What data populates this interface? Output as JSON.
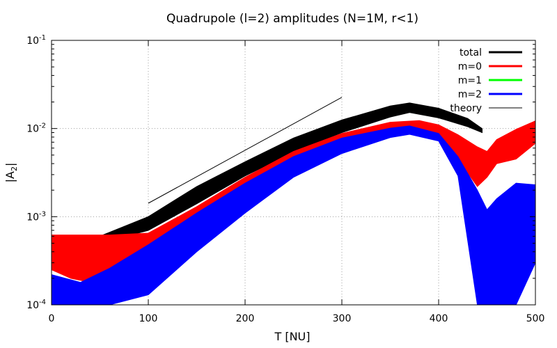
{
  "chart_data": {
    "type": "line",
    "title": "Quadrupole (l=2) amplitudes (N=1M, r<1)",
    "xlabel": "T [NU]",
    "ylabel_main": "|A",
    "ylabel_sub": "2",
    "ylabel_end": "|",
    "xlim": [
      0,
      500
    ],
    "ylim": [
      0.0001,
      0.1
    ],
    "yscale": "log",
    "grid": true,
    "legend_position": "top-right",
    "x_ticks": [
      {
        "value": 0,
        "label": "0"
      },
      {
        "value": 100,
        "label": "100"
      },
      {
        "value": 200,
        "label": "200"
      },
      {
        "value": 300,
        "label": "300"
      },
      {
        "value": 400,
        "label": "400"
      },
      {
        "value": 500,
        "label": "500"
      }
    ],
    "y_ticks": [
      {
        "value": 0.0001,
        "base": "10",
        "exp": "-4"
      },
      {
        "value": 0.001,
        "base": "10",
        "exp": "-3"
      },
      {
        "value": 0.01,
        "base": "10",
        "exp": "-2"
      },
      {
        "value": 0.1,
        "base": "10",
        "exp": "-1"
      }
    ],
    "series": [
      {
        "name": "total",
        "color": "#000000",
        "kind": "band",
        "upper": [
          [
            0,
            0.0006
          ],
          [
            50,
            0.0006
          ],
          [
            100,
            0.001
          ],
          [
            150,
            0.0022
          ],
          [
            200,
            0.0042
          ],
          [
            250,
            0.0078
          ],
          [
            300,
            0.0125
          ],
          [
            350,
            0.018
          ],
          [
            370,
            0.0195
          ],
          [
            400,
            0.017
          ],
          [
            430,
            0.013
          ],
          [
            445,
            0.01
          ]
        ],
        "lower": [
          [
            0,
            0.0006
          ],
          [
            50,
            0.0005
          ],
          [
            100,
            0.0007
          ],
          [
            150,
            0.0014
          ],
          [
            200,
            0.0029
          ],
          [
            250,
            0.0054
          ],
          [
            300,
            0.009
          ],
          [
            350,
            0.0135
          ],
          [
            370,
            0.0152
          ],
          [
            400,
            0.0132
          ],
          [
            430,
            0.0105
          ],
          [
            445,
            0.009
          ]
        ]
      },
      {
        "name": "m=0",
        "color": "#ff0000",
        "kind": "band",
        "upper": [
          [
            0,
            0.00062
          ],
          [
            20,
            0.00062
          ],
          [
            40,
            0.00062
          ],
          [
            60,
            0.00062
          ],
          [
            100,
            0.00065
          ],
          [
            150,
            0.0013
          ],
          [
            200,
            0.0028
          ],
          [
            250,
            0.0055
          ],
          [
            300,
            0.0088
          ],
          [
            350,
            0.0118
          ],
          [
            380,
            0.0123
          ],
          [
            400,
            0.011
          ],
          [
            420,
            0.0085
          ],
          [
            440,
            0.0062
          ],
          [
            450,
            0.0055
          ],
          [
            460,
            0.0075
          ],
          [
            480,
            0.0098
          ],
          [
            500,
            0.0122
          ]
        ],
        "lower": [
          [
            0,
            0.00025
          ],
          [
            20,
            0.0002
          ],
          [
            40,
            0.00018
          ],
          [
            60,
            0.00025
          ],
          [
            100,
            0.00035
          ],
          [
            150,
            0.0009
          ],
          [
            200,
            0.0019
          ],
          [
            250,
            0.0038
          ],
          [
            300,
            0.0064
          ],
          [
            350,
            0.0092
          ],
          [
            380,
            0.0098
          ],
          [
            400,
            0.0082
          ],
          [
            420,
            0.0045
          ],
          [
            440,
            0.0022
          ],
          [
            450,
            0.0028
          ],
          [
            460,
            0.004
          ],
          [
            480,
            0.0045
          ],
          [
            500,
            0.0068
          ]
        ]
      },
      {
        "name": "m=1",
        "color": "#00ff00",
        "kind": "band",
        "upper": [],
        "lower": []
      },
      {
        "name": "m=2",
        "color": "#0000ff",
        "kind": "band",
        "upper": [
          [
            0,
            0.00022
          ],
          [
            30,
            0.00018
          ],
          [
            60,
            0.00026
          ],
          [
            100,
            0.00048
          ],
          [
            150,
            0.0011
          ],
          [
            200,
            0.0024
          ],
          [
            250,
            0.0048
          ],
          [
            300,
            0.0078
          ],
          [
            350,
            0.0101
          ],
          [
            370,
            0.0107
          ],
          [
            400,
            0.0088
          ],
          [
            420,
            0.0048
          ],
          [
            440,
            0.002
          ],
          [
            450,
            0.0012
          ],
          [
            460,
            0.0016
          ],
          [
            480,
            0.0024
          ],
          [
            500,
            0.0023
          ]
        ],
        "lower": [
          [
            0,
            0.0001
          ],
          [
            30,
            0.0001
          ],
          [
            60,
            0.0001
          ],
          [
            100,
            0.00013
          ],
          [
            150,
            0.0004
          ],
          [
            200,
            0.0011
          ],
          [
            250,
            0.0028
          ],
          [
            300,
            0.0052
          ],
          [
            350,
            0.0079
          ],
          [
            370,
            0.0086
          ],
          [
            400,
            0.0072
          ],
          [
            420,
            0.0029
          ],
          [
            440,
            0.0001
          ],
          [
            450,
            0.0001
          ],
          [
            460,
            0.0001
          ],
          [
            480,
            0.0001
          ],
          [
            500,
            0.0003
          ]
        ]
      },
      {
        "name": "theory",
        "color": "#000000",
        "kind": "line",
        "points": [
          [
            100,
            0.00142
          ],
          [
            300,
            0.0226
          ]
        ]
      }
    ]
  }
}
